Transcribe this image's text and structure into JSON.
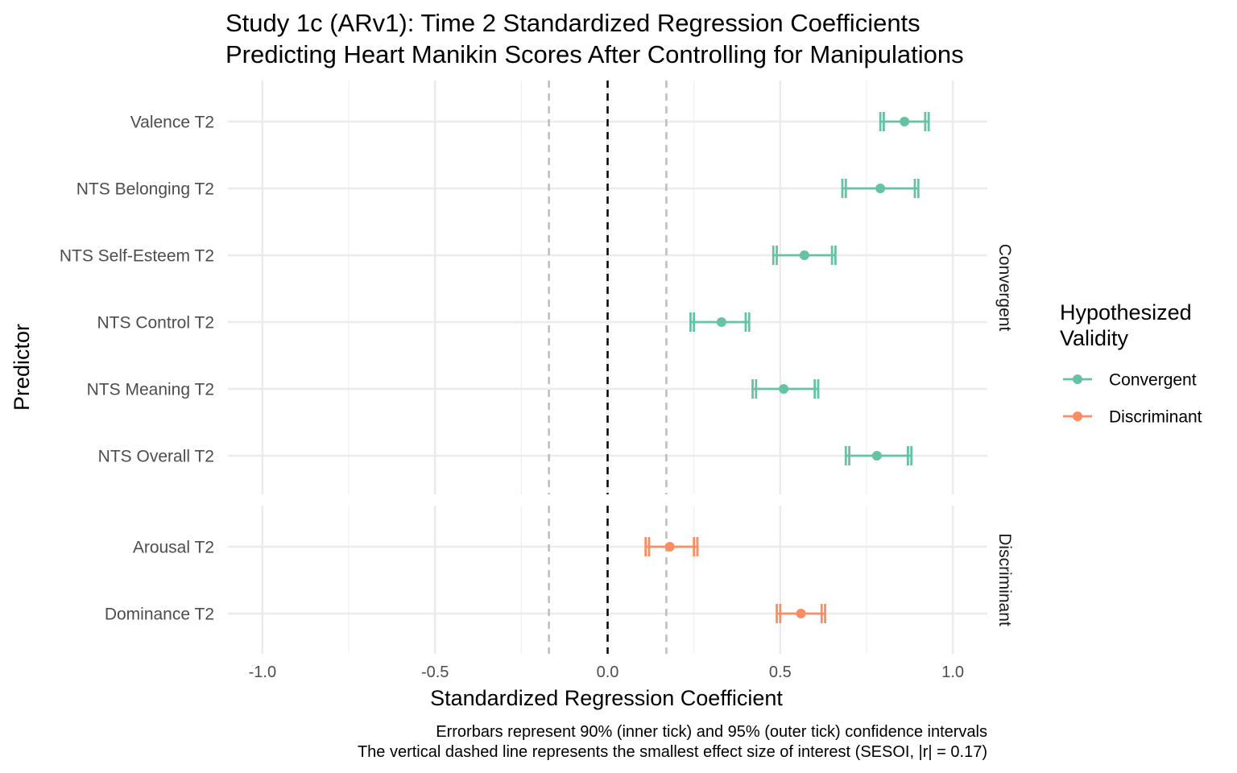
{
  "chart_data": {
    "type": "forest",
    "title": "Study 1c (ARv1): Time 2 Standardized Regression Coefficients",
    "subtitle": "Predicting Heart Manikin Scores After Controlling for Manipulations",
    "xlabel": "Standardized Regression Coefficient",
    "ylabel": "Predictor",
    "xlim": [
      -1.1,
      1.1
    ],
    "x_ticks": [
      -1.0,
      -0.5,
      0.0,
      0.5,
      1.0
    ],
    "x_tick_labels": [
      "-1.0",
      "-0.5",
      "0.0",
      "0.5",
      "1.0"
    ],
    "reference_lines": {
      "zero": 0,
      "sesoi": [
        -0.17,
        0.17
      ]
    },
    "grid": true,
    "legend": {
      "title_lines": [
        "Hypothesized",
        "Validity"
      ],
      "position": "right",
      "entries": [
        {
          "label": "Convergent",
          "color": "#66c2a5"
        },
        {
          "label": "Discriminant",
          "color": "#fc8d62"
        }
      ]
    },
    "panels": [
      {
        "strip": "Convergent",
        "color": "#66c2a5",
        "rows": [
          {
            "label": "Valence T2",
            "estimate": 0.86,
            "ci90": [
              0.8,
              0.92
            ],
            "ci95": [
              0.79,
              0.93
            ]
          },
          {
            "label": "NTS Belonging T2",
            "estimate": 0.79,
            "ci90": [
              0.69,
              0.89
            ],
            "ci95": [
              0.68,
              0.9
            ]
          },
          {
            "label": "NTS Self-Esteem T2",
            "estimate": 0.57,
            "ci90": [
              0.49,
              0.65
            ],
            "ci95": [
              0.48,
              0.66
            ]
          },
          {
            "label": "NTS Control T2",
            "estimate": 0.33,
            "ci90": [
              0.25,
              0.4
            ],
            "ci95": [
              0.24,
              0.41
            ]
          },
          {
            "label": "NTS Meaning T2",
            "estimate": 0.51,
            "ci90": [
              0.43,
              0.6
            ],
            "ci95": [
              0.42,
              0.61
            ]
          },
          {
            "label": "NTS Overall T2",
            "estimate": 0.78,
            "ci90": [
              0.7,
              0.87
            ],
            "ci95": [
              0.69,
              0.88
            ]
          }
        ]
      },
      {
        "strip": "Discriminant",
        "color": "#fc8d62",
        "rows": [
          {
            "label": "Arousal T2",
            "estimate": 0.18,
            "ci90": [
              0.12,
              0.25
            ],
            "ci95": [
              0.11,
              0.26
            ]
          },
          {
            "label": "Dominance T2",
            "estimate": 0.56,
            "ci90": [
              0.5,
              0.62
            ],
            "ci95": [
              0.49,
              0.63
            ]
          }
        ]
      }
    ],
    "caption": [
      "Errorbars represent 90% (inner tick) and 95% (outer tick) confidence intervals",
      "The vertical dashed line represents the smallest effect size of interest (SESOI, |r| = 0.17)"
    ]
  }
}
